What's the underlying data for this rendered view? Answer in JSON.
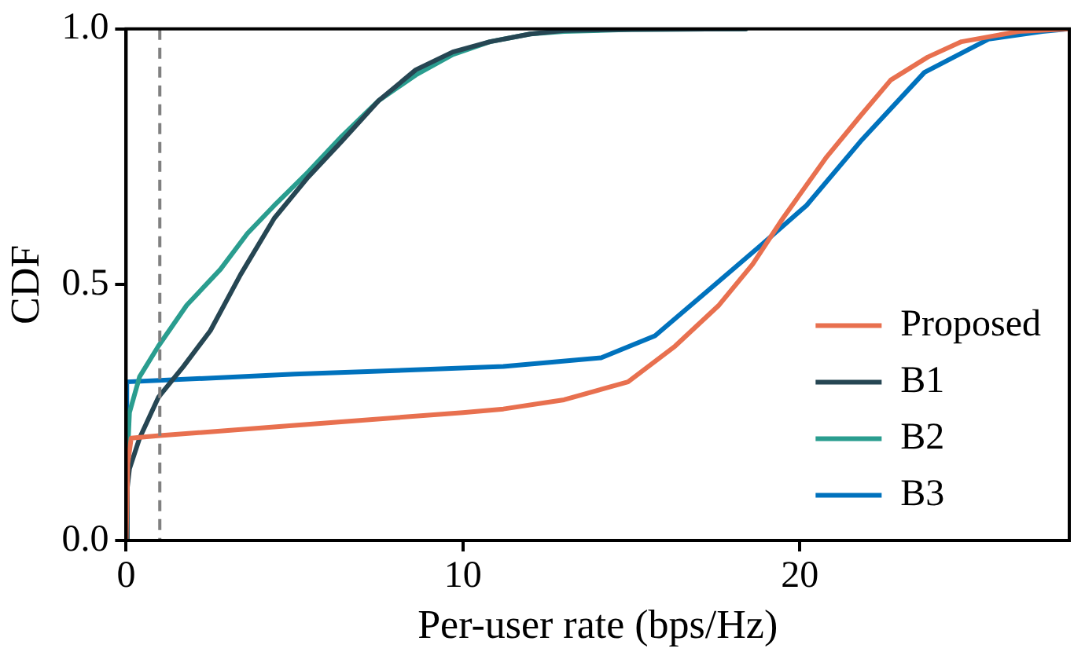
{
  "chart_data": {
    "type": "line",
    "xlabel": "Per-user rate (bps/Hz)",
    "ylabel": "CDF",
    "xlim": [
      0,
      28
    ],
    "xticks": [
      0,
      10,
      20
    ],
    "ylim": [
      0,
      1
    ],
    "yticks": [
      {
        "value": 0,
        "label": "0.0"
      },
      {
        "value": 0.5,
        "label": "0.5"
      },
      {
        "value": 1,
        "label": "1.0"
      }
    ],
    "grid": false,
    "legend": "right",
    "marker": "none",
    "line_style": "solid",
    "ref_lines": [
      {
        "axis": "x",
        "value": 1,
        "color": "#808080",
        "line_style": "dashed"
      }
    ],
    "series": [
      {
        "name": "Proposed",
        "color": "#e8704f",
        "x": [
          0,
          0.05,
          0.15,
          1,
          5,
          10,
          11.2,
          13,
          14.9,
          16.3,
          17.6,
          18.6,
          19.5,
          20.8,
          21.8,
          22.7,
          23.8,
          24.8,
          26.5,
          28
        ],
        "values": [
          0,
          0.15,
          0.2,
          0.205,
          0.225,
          0.25,
          0.257,
          0.275,
          0.31,
          0.38,
          0.46,
          0.54,
          0.63,
          0.75,
          0.83,
          0.9,
          0.945,
          0.975,
          0.995,
          1
        ]
      },
      {
        "name": "B1",
        "color": "#264653",
        "x": [
          0,
          0.03,
          0.1,
          0.4,
          0.96,
          1.7,
          2.5,
          3.4,
          4.4,
          5.4,
          6.4,
          7.5,
          8.6,
          9.7,
          10.8,
          12,
          13,
          15,
          18.4
        ],
        "values": [
          0,
          0.1,
          0.14,
          0.2,
          0.28,
          0.34,
          0.41,
          0.52,
          0.63,
          0.71,
          0.78,
          0.86,
          0.92,
          0.955,
          0.975,
          0.99,
          0.997,
          0.999,
          1
        ]
      },
      {
        "name": "B2",
        "color": "#2a9d8f",
        "x": [
          0,
          0.03,
          0.1,
          0.4,
          0.96,
          1.8,
          2.8,
          3.6,
          4.4,
          5.4,
          6.4,
          7.5,
          8.6,
          9.7,
          10.8,
          12,
          13,
          15,
          18.4
        ],
        "values": [
          0,
          0.15,
          0.25,
          0.32,
          0.38,
          0.46,
          0.53,
          0.6,
          0.655,
          0.72,
          0.79,
          0.86,
          0.91,
          0.95,
          0.975,
          0.99,
          0.995,
          0.999,
          1
        ]
      },
      {
        "name": "B3",
        "color": "#0072bd",
        "x": [
          0,
          0.02,
          5,
          11.2,
          14.1,
          15.7,
          17.3,
          18.9,
          20.2,
          21.8,
          23.7,
          25.6,
          27.2,
          28
        ],
        "values": [
          0,
          0.31,
          0.325,
          0.34,
          0.357,
          0.4,
          0.49,
          0.58,
          0.655,
          0.78,
          0.915,
          0.98,
          0.995,
          1
        ]
      }
    ]
  }
}
